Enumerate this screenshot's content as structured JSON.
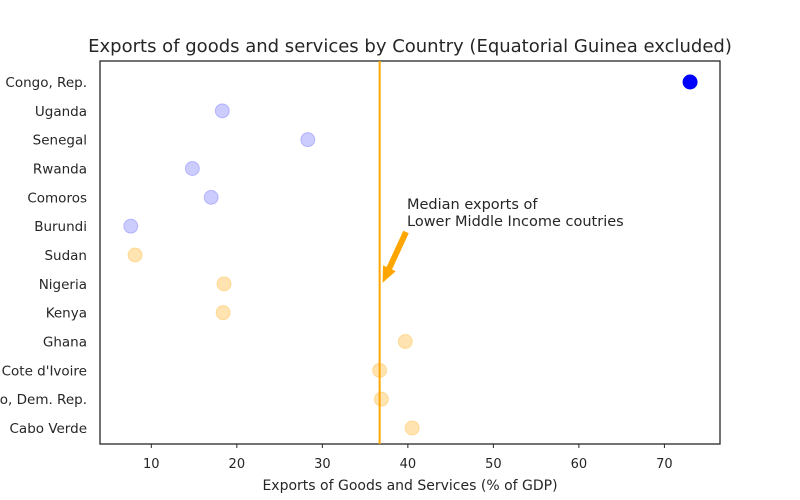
{
  "chart_data": {
    "type": "scatter",
    "title": "Exports of goods and services by Country (Equatorial Guinea excluded)",
    "xlabel": "Exports of Goods and Services (% of GDP)",
    "ylabel": "",
    "xlim": [
      4,
      76.5
    ],
    "xticks": [
      10,
      20,
      30,
      40,
      50,
      60,
      70
    ],
    "grid": false,
    "categories": [
      "Congo, Rep.",
      "Uganda",
      "Senegal",
      "Rwanda",
      "Comoros",
      "Burundi",
      "Sudan",
      "Nigeria",
      "Kenya",
      "Ghana",
      "Cote d'Ivoire",
      "Congo, Dem. Rep.",
      "Cabo Verde"
    ],
    "points": [
      {
        "category": "Congo, Rep.",
        "x": 73.0,
        "color": "#0000ff",
        "opacity": 1.0
      },
      {
        "category": "Uganda",
        "x": 18.3,
        "color": "#0000ff",
        "opacity": 0.2
      },
      {
        "category": "Senegal",
        "x": 28.3,
        "color": "#0000ff",
        "opacity": 0.2
      },
      {
        "category": "Rwanda",
        "x": 14.8,
        "color": "#0000ff",
        "opacity": 0.2
      },
      {
        "category": "Comoros",
        "x": 17.0,
        "color": "#0000ff",
        "opacity": 0.2
      },
      {
        "category": "Burundi",
        "x": 7.6,
        "color": "#0000ff",
        "opacity": 0.2
      },
      {
        "category": "Sudan",
        "x": 8.1,
        "color": "#ffa500",
        "opacity": 0.3
      },
      {
        "category": "Nigeria",
        "x": 18.5,
        "color": "#ffa500",
        "opacity": 0.3
      },
      {
        "category": "Kenya",
        "x": 18.4,
        "color": "#ffa500",
        "opacity": 0.3
      },
      {
        "category": "Ghana",
        "x": 39.7,
        "color": "#ffa500",
        "opacity": 0.3
      },
      {
        "category": "Cote d'Ivoire",
        "x": 36.7,
        "color": "#ffa500",
        "opacity": 0.3
      },
      {
        "category": "Congo, Dem. Rep.",
        "x": 36.9,
        "color": "#ffa500",
        "opacity": 0.3
      },
      {
        "category": "Cabo Verde",
        "x": 40.5,
        "color": "#ffa500",
        "opacity": 0.3
      }
    ],
    "reference_line": {
      "x": 36.7,
      "color": "#ffa500"
    },
    "annotation": {
      "lines": [
        "Median exports of",
        "Lower Middle Income coutries"
      ],
      "arrow_color": "#ffa500",
      "arrow_target": {
        "x": 36.7,
        "category": "Nigeria"
      }
    }
  }
}
